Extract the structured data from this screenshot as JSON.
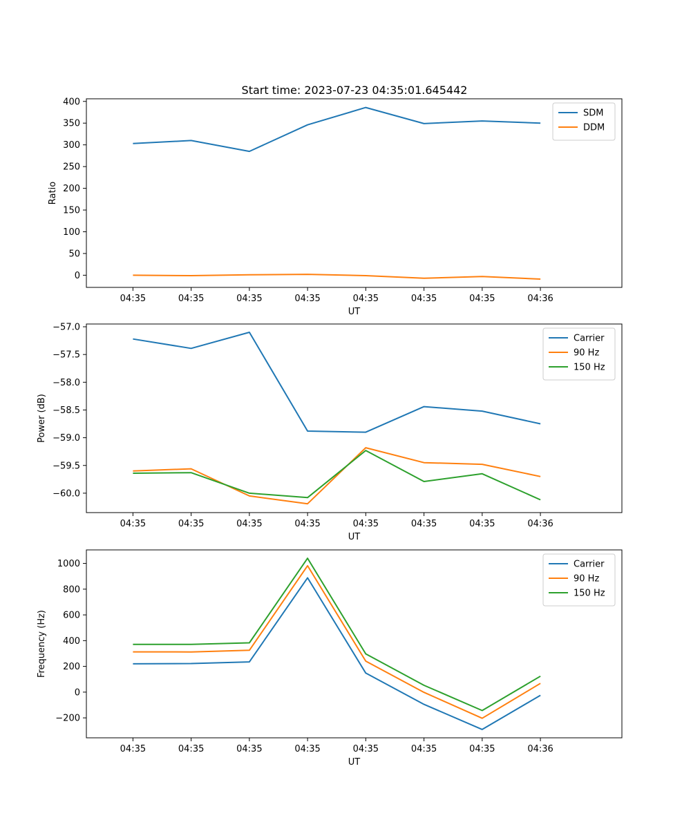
{
  "figure_title": "Start time: 2023-07-23 04:35:01.645442",
  "chart_data": [
    {
      "type": "line",
      "title": "Start time: 2023-07-23 04:35:01.645442",
      "xlabel": "UT",
      "ylabel": "Ratio",
      "x_ticks": [
        "04:35",
        "04:35",
        "04:35",
        "04:35",
        "04:35",
        "04:35",
        "04:35",
        "04:36"
      ],
      "x_points": 8,
      "xlim": [
        -0.8,
        8.4
      ],
      "ylim": [
        -28,
        406
      ],
      "y_ticks": [
        0,
        50,
        100,
        150,
        200,
        250,
        300,
        350,
        400
      ],
      "y_tick_labels": [
        "0",
        "50",
        "100",
        "150",
        "200",
        "250",
        "300",
        "350",
        "400"
      ],
      "legend_position": "top-right",
      "series": [
        {
          "name": "SDM",
          "color": "#1f77b4",
          "values": [
            303,
            310,
            285,
            346,
            386,
            349,
            355,
            350
          ]
        },
        {
          "name": "DDM",
          "color": "#ff7f0e",
          "values": [
            0,
            -1,
            1,
            2,
            -1,
            -7,
            -3,
            -9
          ]
        }
      ]
    },
    {
      "type": "line",
      "xlabel": "UT",
      "ylabel": "Power (dB)",
      "x_ticks": [
        "04:35",
        "04:35",
        "04:35",
        "04:35",
        "04:35",
        "04:35",
        "04:35",
        "04:36"
      ],
      "x_points": 8,
      "xlim": [
        -0.8,
        8.4
      ],
      "ylim": [
        -60.35,
        -56.95
      ],
      "y_ticks": [
        -57.0,
        -57.5,
        -58.0,
        -58.5,
        -59.0,
        -59.5,
        -60.0
      ],
      "y_tick_labels": [
        "−57.0",
        "−57.5",
        "−58.0",
        "−58.5",
        "−59.0",
        "−59.5",
        "−60.0"
      ],
      "legend_position": "top-right",
      "series": [
        {
          "name": "Carrier",
          "color": "#1f77b4",
          "values": [
            -57.22,
            -57.39,
            -57.1,
            -58.88,
            -58.9,
            -58.44,
            -58.52,
            -58.75
          ]
        },
        {
          "name": "90 Hz",
          "color": "#ff7f0e",
          "values": [
            -59.6,
            -59.56,
            -60.05,
            -60.19,
            -59.18,
            -59.45,
            -59.48,
            -59.7
          ]
        },
        {
          "name": "150 Hz",
          "color": "#2ca02c",
          "values": [
            -59.64,
            -59.63,
            -60.0,
            -60.08,
            -59.23,
            -59.79,
            -59.65,
            -60.12
          ]
        }
      ]
    },
    {
      "type": "line",
      "xlabel": "UT",
      "ylabel": "Frequency (Hz)",
      "x_ticks": [
        "04:35",
        "04:35",
        "04:35",
        "04:35",
        "04:35",
        "04:35",
        "04:35",
        "04:36"
      ],
      "x_points": 8,
      "xlim": [
        -0.8,
        8.4
      ],
      "ylim": [
        -355,
        1105
      ],
      "y_ticks": [
        -200,
        0,
        200,
        400,
        600,
        800,
        1000
      ],
      "y_tick_labels": [
        "−200",
        "0",
        "200",
        "400",
        "600",
        "800",
        "1000"
      ],
      "legend_position": "top-right",
      "series": [
        {
          "name": "Carrier",
          "color": "#1f77b4",
          "values": [
            220,
            222,
            235,
            888,
            148,
            -95,
            -290,
            -25
          ]
        },
        {
          "name": "90 Hz",
          "color": "#ff7f0e",
          "values": [
            313,
            312,
            325,
            982,
            241,
            -2,
            -203,
            68
          ]
        },
        {
          "name": "150 Hz",
          "color": "#2ca02c",
          "values": [
            371,
            371,
            383,
            1040,
            297,
            53,
            -143,
            124
          ]
        }
      ]
    }
  ]
}
